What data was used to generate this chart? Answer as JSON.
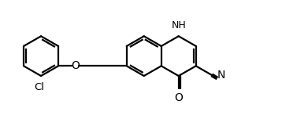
{
  "line_color": "#000000",
  "bg_color": "#ffffff",
  "line_width": 1.6,
  "font_size": 9,
  "figsize": [
    3.58,
    1.47
  ],
  "dpi": 100,
  "xlim": [
    0,
    9.5
  ],
  "ylim": [
    0,
    3.9
  ]
}
